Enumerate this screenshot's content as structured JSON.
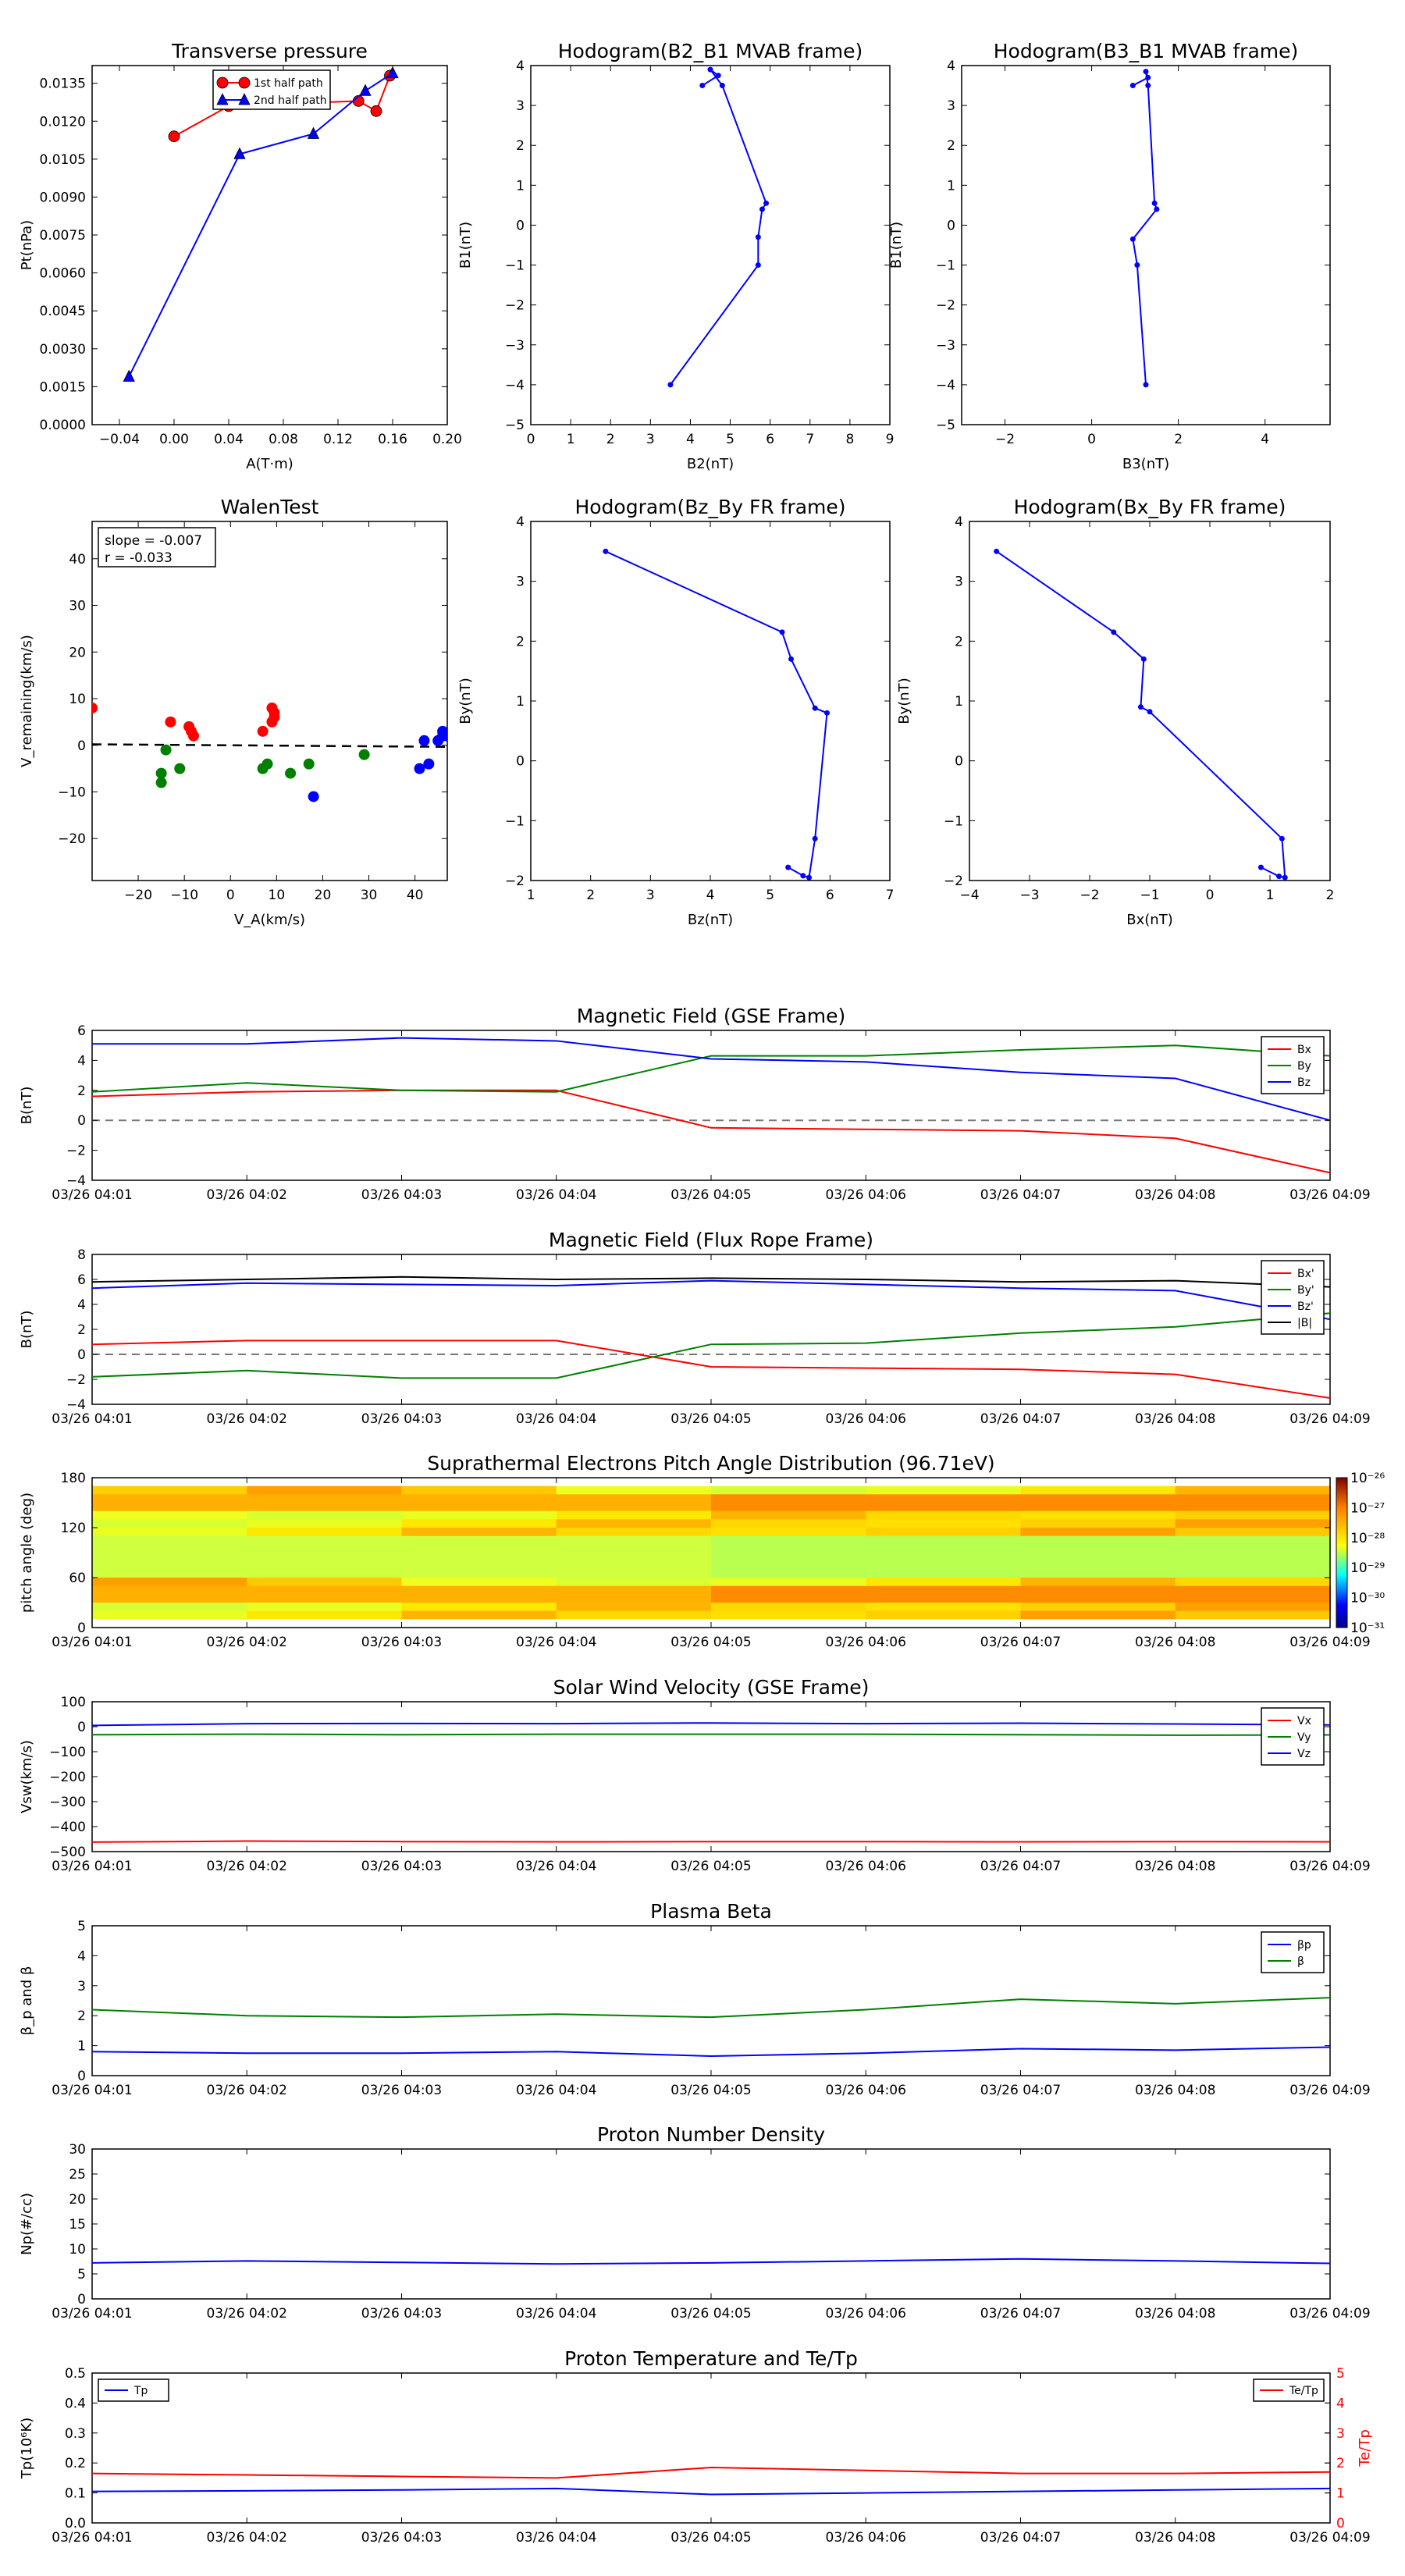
{
  "charts": [
    {
      "id": "tp",
      "type": "line",
      "title": "Transverse pressure",
      "xlabel": "A(T·m)",
      "ylabel": "Pt(nPa)",
      "xlim": [
        -0.06,
        0.2
      ],
      "ylim": [
        0,
        0.0142
      ],
      "xticks": [
        -0.04,
        0.0,
        0.04,
        0.08,
        0.12,
        0.16,
        0.2
      ],
      "xtick_labels": [
        "−0.04",
        "0.00",
        "0.04",
        "0.08",
        "0.12",
        "0.16",
        "0.20"
      ],
      "yticks": [
        0,
        0.0015,
        0.003,
        0.0045,
        0.006,
        0.0075,
        0.009,
        0.0105,
        0.012,
        0.0135
      ],
      "ytick_labels": [
        "0.0000",
        "0.0015",
        "0.0030",
        "0.0045",
        "0.0060",
        "0.0075",
        "0.0090",
        "0.0105",
        "0.0120",
        "0.0135"
      ],
      "legend": "top-center",
      "series": [
        {
          "name": "1st half path",
          "color": "#ff0000",
          "marker": "circle",
          "x": [
            0.0,
            0.04,
            0.135,
            0.148,
            0.158
          ],
          "y": [
            0.0114,
            0.0126,
            0.0128,
            0.0124,
            0.0138
          ]
        },
        {
          "name": "2nd half path",
          "color": "#0000ff",
          "marker": "triangle",
          "x": [
            -0.033,
            0.048,
            0.102,
            0.14,
            0.16
          ],
          "y": [
            0.0019,
            0.0107,
            0.0115,
            0.0132,
            0.0139
          ]
        }
      ]
    },
    {
      "id": "h1",
      "type": "line",
      "title": "Hodogram(B2_B1 MVAB frame)",
      "xlabel": "B2(nT)",
      "ylabel": "B1(nT)",
      "xlim": [
        0,
        9
      ],
      "ylim": [
        -5,
        4
      ],
      "xticks": [
        0,
        1,
        2,
        3,
        4,
        5,
        6,
        7,
        8,
        9
      ],
      "xtick_labels": [
        "0",
        "1",
        "2",
        "3",
        "4",
        "5",
        "6",
        "7",
        "8",
        "9"
      ],
      "yticks": [
        -5,
        -4,
        -3,
        -2,
        -1,
        0,
        1,
        2,
        3,
        4
      ],
      "ytick_labels": [
        "−5",
        "−4",
        "−3",
        "−2",
        "−1",
        "0",
        "1",
        "2",
        "3",
        "4"
      ],
      "series": [
        {
          "name": "",
          "color": "#0000ff",
          "marker": "dot",
          "x": [
            3.5,
            5.7,
            5.7,
            5.8,
            5.9,
            4.8,
            4.5,
            4.7,
            4.3
          ],
          "y": [
            -4.0,
            -1.0,
            -0.3,
            0.4,
            0.55,
            3.5,
            3.9,
            3.75,
            3.5
          ]
        }
      ]
    },
    {
      "id": "h2",
      "type": "line",
      "title": "Hodogram(B3_B1 MVAB frame)",
      "xlabel": "B3(nT)",
      "ylabel": "B1(nT)",
      "xlim": [
        -3,
        5.5
      ],
      "ylim": [
        -5,
        4
      ],
      "xticks": [
        -2,
        0,
        2,
        4
      ],
      "xtick_labels": [
        "−2",
        "0",
        "2",
        "4"
      ],
      "yticks": [
        -5,
        -4,
        -3,
        -2,
        -1,
        0,
        1,
        2,
        3,
        4
      ],
      "ytick_labels": [
        "−5",
        "−4",
        "−3",
        "−2",
        "−1",
        "0",
        "1",
        "2",
        "3",
        "4"
      ],
      "series": [
        {
          "name": "",
          "color": "#0000ff",
          "marker": "dot",
          "x": [
            1.25,
            1.05,
            0.95,
            1.5,
            1.45,
            1.3,
            1.25,
            1.3,
            0.95
          ],
          "y": [
            -4.0,
            -1.0,
            -0.35,
            0.4,
            0.55,
            3.5,
            3.85,
            3.7,
            3.5
          ]
        }
      ]
    },
    {
      "id": "walen",
      "type": "scatter",
      "title": "WalenTest",
      "xlabel": "V_A(km/s)",
      "ylabel": "V_remaining(km/s)",
      "xlim": [
        -30,
        47
      ],
      "ylim": [
        -29,
        48
      ],
      "xticks": [
        -20,
        -10,
        0,
        10,
        20,
        30,
        40
      ],
      "xtick_labels": [
        "−20",
        "−10",
        "0",
        "10",
        "20",
        "30",
        "40"
      ],
      "yticks": [
        -20,
        -10,
        0,
        10,
        20,
        30,
        40
      ],
      "ytick_labels": [
        "−20",
        "−10",
        "0",
        "10",
        "20",
        "30",
        "40"
      ],
      "annotation": [
        "slope = -0.007",
        "r = -0.033"
      ],
      "fit_line": {
        "slope": -0.007,
        "intercept": 0.0
      },
      "series": [
        {
          "name": "",
          "color": "#ff0000",
          "x": [
            -30,
            -13,
            -9,
            -8.5,
            -8,
            7,
            9,
            9.5,
            9,
            9.5
          ],
          "y": [
            8,
            5,
            4,
            3,
            2,
            3,
            8,
            6,
            5,
            7
          ]
        },
        {
          "name": "",
          "color": "#008000",
          "x": [
            -15,
            -14,
            -15,
            -11,
            7,
            8,
            13,
            17,
            29
          ],
          "y": [
            -6,
            -1,
            -8,
            -5,
            -5,
            -4,
            -6,
            -4,
            -2
          ]
        },
        {
          "name": "",
          "color": "#0000ff",
          "x": [
            18,
            41,
            43,
            45,
            46,
            46,
            47,
            42
          ],
          "y": [
            -11,
            -5,
            -4,
            1,
            2,
            3,
            2,
            1
          ]
        }
      ]
    },
    {
      "id": "h3",
      "type": "line",
      "title": "Hodogram(Bz_By FR frame)",
      "xlabel": "Bz(nT)",
      "ylabel": "By(nT)",
      "xlim": [
        1,
        7
      ],
      "ylim": [
        -2,
        4
      ],
      "xticks": [
        1,
        2,
        3,
        4,
        5,
        6,
        7
      ],
      "xtick_labels": [
        "1",
        "2",
        "3",
        "4",
        "5",
        "6",
        "7"
      ],
      "yticks": [
        -2,
        -1,
        0,
        1,
        2,
        3,
        4
      ],
      "ytick_labels": [
        "−2",
        "−1",
        "0",
        "1",
        "2",
        "3",
        "4"
      ],
      "series": [
        {
          "name": "",
          "color": "#0000ff",
          "marker": "dot",
          "x": [
            2.25,
            5.2,
            5.35,
            5.75,
            5.95,
            5.75,
            5.65,
            5.55,
            5.3
          ],
          "y": [
            3.5,
            2.15,
            1.7,
            0.88,
            0.8,
            -1.3,
            -1.95,
            -1.92,
            -1.78
          ]
        }
      ]
    },
    {
      "id": "h4",
      "type": "line",
      "title": "Hodogram(Bx_By FR frame)",
      "xlabel": "Bx(nT)",
      "ylabel": "By(nT)",
      "xlim": [
        -4,
        2
      ],
      "ylim": [
        -2,
        4
      ],
      "xticks": [
        -4,
        -3,
        -2,
        -1,
        0,
        1,
        2
      ],
      "xtick_labels": [
        "−4",
        "−3",
        "−2",
        "−1",
        "0",
        "1",
        "2"
      ],
      "yticks": [
        -2,
        -1,
        0,
        1,
        2,
        3,
        4
      ],
      "ytick_labels": [
        "−2",
        "−1",
        "0",
        "1",
        "2",
        "3",
        "4"
      ],
      "series": [
        {
          "name": "",
          "color": "#0000ff",
          "marker": "dot",
          "x": [
            -3.55,
            -1.6,
            -1.1,
            -1.15,
            -1.0,
            1.2,
            1.25,
            1.15,
            0.85
          ],
          "y": [
            3.5,
            2.15,
            1.7,
            0.9,
            0.82,
            -1.3,
            -1.95,
            -1.93,
            -1.78
          ]
        }
      ]
    },
    {
      "id": "bgse",
      "type": "line",
      "title": "Magnetic Field (GSE Frame)",
      "ylabel": "B(nT)",
      "ylim": [
        -4,
        6
      ],
      "yticks": [
        -4,
        -2,
        0,
        2,
        4,
        6
      ],
      "ytick_labels": [
        "−4",
        "−2",
        "0",
        "2",
        "4",
        "6"
      ],
      "zero_line": true,
      "legend": "top-right",
      "series": [
        {
          "name": "Bx",
          "color": "#ff0000",
          "y": [
            1.6,
            1.9,
            2.0,
            2.0,
            -0.5,
            -0.6,
            -0.7,
            -1.2,
            -3.5
          ]
        },
        {
          "name": "By",
          "color": "#008000",
          "y": [
            1.9,
            2.5,
            2.0,
            1.9,
            4.3,
            4.3,
            4.7,
            5.0,
            4.3
          ]
        },
        {
          "name": "Bz",
          "color": "#0000ff",
          "y": [
            5.1,
            5.1,
            5.5,
            5.3,
            4.1,
            3.9,
            3.2,
            2.8,
            0.0
          ]
        }
      ]
    },
    {
      "id": "bfr",
      "type": "line",
      "title": "Magnetic Field (Flux Rope Frame)",
      "ylabel": "B(nT)",
      "ylim": [
        -4,
        8
      ],
      "yticks": [
        -4,
        -2,
        0,
        2,
        4,
        6,
        8
      ],
      "ytick_labels": [
        "−4",
        "−2",
        "0",
        "2",
        "4",
        "6",
        "8"
      ],
      "zero_line": true,
      "legend": "top-right",
      "series": [
        {
          "name": "Bx'",
          "color": "#ff0000",
          "y": [
            0.8,
            1.1,
            1.1,
            1.1,
            -1.0,
            -1.1,
            -1.2,
            -1.6,
            -3.5
          ]
        },
        {
          "name": "By'",
          "color": "#008000",
          "y": [
            -1.8,
            -1.3,
            -1.9,
            -1.9,
            0.8,
            0.9,
            1.7,
            2.2,
            3.3
          ]
        },
        {
          "name": "Bz'",
          "color": "#0000ff",
          "y": [
            5.3,
            5.7,
            5.6,
            5.5,
            5.9,
            5.6,
            5.3,
            5.1,
            2.8
          ]
        },
        {
          "name": "|B|",
          "color": "#000000",
          "y": [
            5.8,
            6.0,
            6.2,
            6.0,
            6.1,
            6.0,
            5.8,
            5.9,
            5.4
          ]
        }
      ]
    },
    {
      "id": "pad",
      "type": "heatmap",
      "title": "Suprathermal Electrons Pitch Angle Distribution (96.71eV)",
      "ylabel": "pitch angle (deg)",
      "ylim": [
        0,
        180
      ],
      "yticks": [
        0,
        60,
        120,
        180
      ],
      "ytick_labels": [
        "0",
        "60",
        "120",
        "180"
      ],
      "colorbar": [
        "10⁻²⁶",
        "10⁻²⁷",
        "10⁻²⁸",
        "10⁻²⁹",
        "10⁻³⁰",
        "10⁻³¹"
      ]
    },
    {
      "id": "vsw",
      "type": "line",
      "title": "Solar Wind Velocity (GSE Frame)",
      "ylabel": "Vsw(km/s)",
      "ylim": [
        -500,
        100
      ],
      "yticks": [
        -500,
        -400,
        -300,
        -200,
        -100,
        0,
        100
      ],
      "ytick_labels": [
        "−500",
        "−400",
        "−300",
        "−200",
        "−100",
        "0",
        "100"
      ],
      "legend": "top-right",
      "series": [
        {
          "name": "Vx",
          "color": "#ff0000",
          "y": [
            -462,
            -458,
            -460,
            -461,
            -460,
            -460,
            -461,
            -460,
            -461
          ]
        },
        {
          "name": "Vy",
          "color": "#008000",
          "y": [
            -32,
            -30,
            -32,
            -30,
            -30,
            -30,
            -32,
            -34,
            -33
          ]
        },
        {
          "name": "Vz",
          "color": "#0000ff",
          "y": [
            5,
            12,
            13,
            12,
            15,
            12,
            14,
            11,
            7
          ]
        }
      ]
    },
    {
      "id": "beta",
      "type": "line",
      "title": "Plasma Beta",
      "ylabel": "β_p and β",
      "ylim": [
        0,
        5
      ],
      "yticks": [
        0,
        1,
        2,
        3,
        4,
        5
      ],
      "ytick_labels": [
        "0",
        "1",
        "2",
        "3",
        "4",
        "5"
      ],
      "legend": "top-right",
      "series": [
        {
          "name": "βp",
          "color": "#0000ff",
          "y": [
            0.8,
            0.75,
            0.75,
            0.8,
            0.65,
            0.75,
            0.9,
            0.85,
            0.95
          ]
        },
        {
          "name": "β",
          "color": "#008000",
          "y": [
            2.2,
            2.0,
            1.95,
            2.05,
            1.95,
            2.2,
            2.55,
            2.4,
            2.6
          ]
        }
      ]
    },
    {
      "id": "np",
      "type": "line",
      "title": "Proton Number Density",
      "ylabel": "Np(#/cc)",
      "ylim": [
        0,
        30
      ],
      "yticks": [
        0,
        5,
        10,
        15,
        20,
        25,
        30
      ],
      "ytick_labels": [
        "0",
        "5",
        "10",
        "15",
        "20",
        "25",
        "30"
      ],
      "series": [
        {
          "name": "",
          "color": "#0000ff",
          "y": [
            7.2,
            7.6,
            7.3,
            7.0,
            7.2,
            7.6,
            8.0,
            7.6,
            7.1
          ]
        }
      ]
    },
    {
      "id": "temp",
      "type": "line",
      "title": "Proton Temperature and Te/Tp",
      "ylabel": "Tp(10⁶K)",
      "y2label": "Te/Tp",
      "ylim": [
        0,
        0.5
      ],
      "yticks": [
        0,
        0.1,
        0.2,
        0.3,
        0.4,
        0.5
      ],
      "ytick_labels": [
        "0.0",
        "0.1",
        "0.2",
        "0.3",
        "0.4",
        "0.5"
      ],
      "y2lim": [
        0,
        5
      ],
      "y2ticks": [
        0,
        1,
        2,
        3,
        4,
        5
      ],
      "y2tick_labels": [
        "0",
        "1",
        "2",
        "3",
        "4",
        "5"
      ],
      "series": [
        {
          "name": "Tp",
          "color": "#0000ff",
          "y": [
            0.105,
            0.107,
            0.11,
            0.115,
            0.095,
            0.1,
            0.105,
            0.11,
            0.115
          ],
          "axis": "left",
          "legend": "top-left"
        },
        {
          "name": "Te/Tp",
          "color": "#ff0000",
          "y": [
            1.65,
            1.6,
            1.55,
            1.5,
            1.85,
            1.75,
            1.65,
            1.65,
            1.7
          ],
          "axis": "right",
          "legend": "top-right"
        }
      ]
    }
  ],
  "time_ticks": [
    "03/26 04:01",
    "03/26 04:02",
    "03/26 04:03",
    "03/26 04:04",
    "03/26 04:05",
    "03/26 04:06",
    "03/26 04:07",
    "03/26 04:08",
    "03/26 04:09"
  ]
}
